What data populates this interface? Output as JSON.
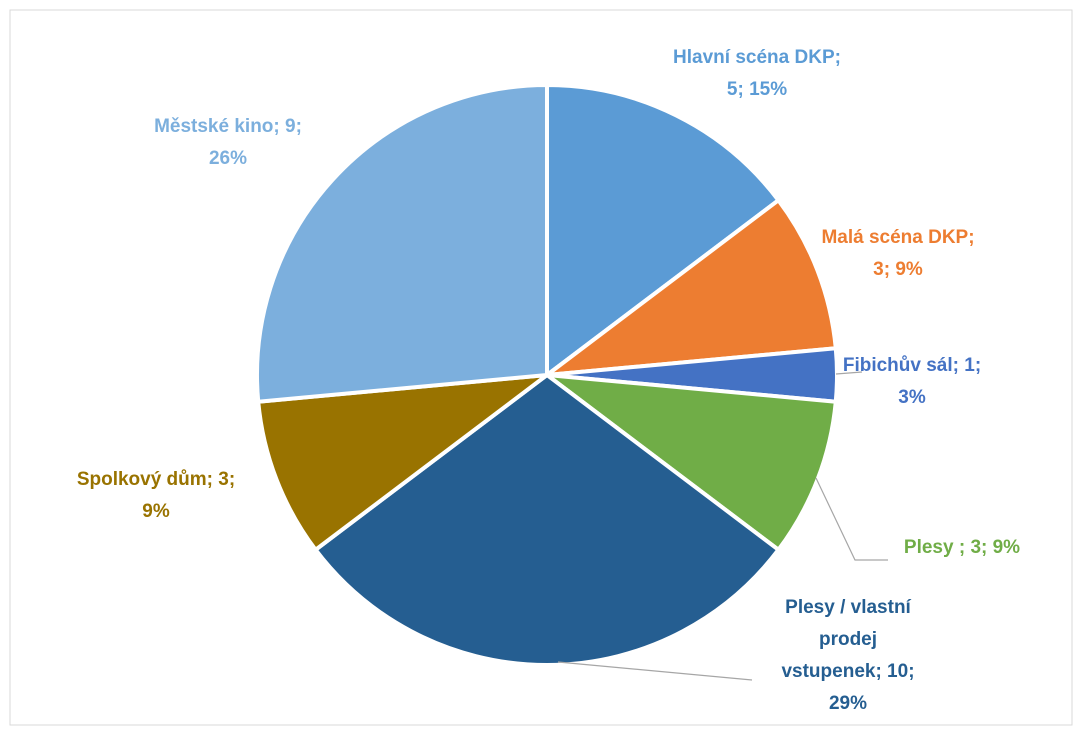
{
  "chart_data": {
    "type": "pie",
    "values": [
      5,
      3,
      1,
      3,
      10,
      3,
      9
    ],
    "value_labels": [
      "Hlavní scéna DKP; 5; 15%",
      "Malá scéna DKP; 3; 9%",
      "Fibichův sál; 1; 3%",
      "Plesy ; 3; 9%",
      "Plesy / vlastní prodej vstupenek; 10; 29%",
      "Spolkový dům; 3; 9%",
      "Městské kino; 9; 26%"
    ],
    "colors": [
      "#5b9bd5",
      "#ed7d31",
      "#4472c4",
      "#70ad47",
      "#255e91",
      "#997300",
      "#7cafdd"
    ]
  }
}
